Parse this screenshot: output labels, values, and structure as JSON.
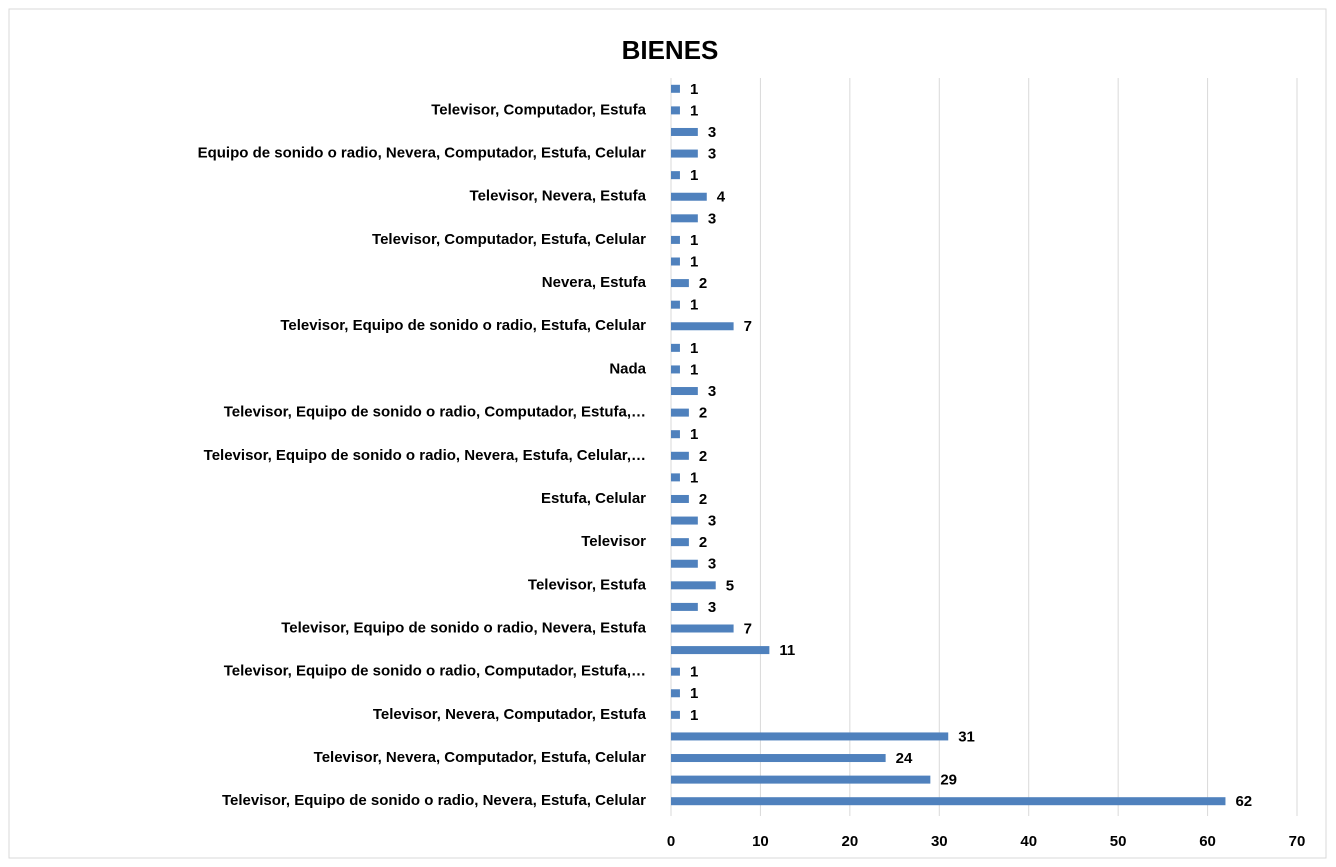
{
  "chart_data": {
    "type": "bar",
    "orientation": "horizontal",
    "title": "BIENES",
    "categories": [
      null,
      "Televisor, Computador, Estufa",
      null,
      "Equipo de sonido o radio, Nevera, Computador, Estufa, Celular",
      null,
      "Televisor, Nevera, Estufa",
      null,
      "Televisor, Computador, Estufa, Celular",
      null,
      "Nevera, Estufa",
      null,
      "Televisor, Equipo de sonido o radio, Estufa, Celular",
      null,
      "Nada",
      null,
      "Televisor, Equipo de sonido o radio, Computador, Estufa,…",
      null,
      "Televisor, Equipo de sonido o radio, Nevera, Estufa, Celular,…",
      null,
      "Estufa, Celular",
      null,
      "Televisor",
      null,
      "Televisor, Estufa",
      null,
      "Televisor, Equipo de sonido o radio, Nevera, Estufa",
      null,
      "Televisor, Equipo de sonido o radio, Computador, Estufa,…",
      null,
      "Televisor, Nevera, Computador, Estufa",
      null,
      "Televisor, Nevera, Computador, Estufa, Celular",
      null,
      "Televisor, Equipo de sonido o radio, Nevera, Estufa, Celular"
    ],
    "values": [
      1,
      1,
      3,
      3,
      1,
      4,
      3,
      1,
      1,
      2,
      1,
      7,
      1,
      1,
      3,
      2,
      1,
      2,
      1,
      2,
      3,
      2,
      3,
      5,
      3,
      7,
      11,
      1,
      1,
      1,
      31,
      24,
      29,
      62
    ],
    "color": "#4f81bd",
    "xlim": [
      0,
      70
    ],
    "xticks": [
      0,
      10,
      20,
      30,
      40,
      50,
      60,
      70
    ],
    "grid": true
  }
}
